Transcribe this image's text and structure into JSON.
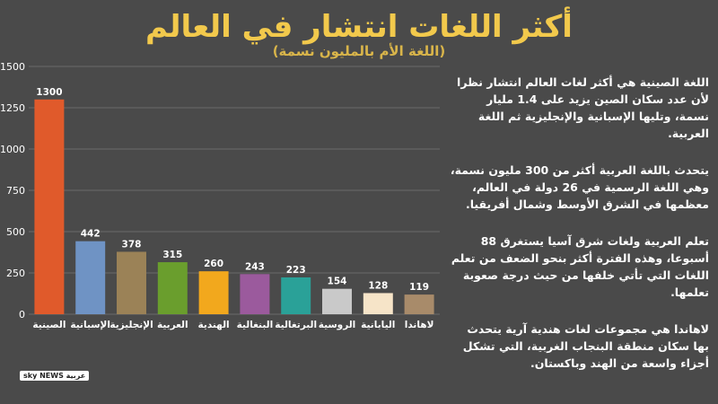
{
  "header": {
    "title": "أكثر اللغات انتشار في العالم",
    "subtitle": "(اللغة الأم بالمليون نسمة)"
  },
  "chart_data": {
    "type": "bar",
    "categories": [
      "الصينية",
      "الإسبانية",
      "الإنجليزية",
      "العربية",
      "الهندية",
      "البنغالية",
      "البرتغالية",
      "الروسية",
      "اليابانية",
      "لاهاندا"
    ],
    "values": [
      1300,
      442,
      378,
      315,
      260,
      243,
      223,
      154,
      128,
      119
    ],
    "colors": [
      "#e05a2b",
      "#6f93c4",
      "#9b8257",
      "#6a9e2d",
      "#f2a81d",
      "#9b5a9d",
      "#2aa198",
      "#c9c9c9",
      "#f6e4c8",
      "#a88b6a"
    ],
    "yticks": [
      0,
      250,
      500,
      750,
      1000,
      1250,
      1500
    ],
    "ylim": [
      0,
      1500
    ],
    "grid": true,
    "xlabel": "",
    "ylabel": ""
  },
  "notes": [
    "اللغة الصينية هي أكثر لغات العالم انتشار نظرا لأن عدد سكان الصين يزيد على 1.4 مليار نسمة، وتليها الإسبانية والإنجليزية ثم اللغة العربية.",
    "يتحدث باللغة العربية أكثر من 300 مليون نسمة، وهي اللغة الرسمية في 26 دولة في العالم، معظمها في الشرق الأوسط وشمال أفريقيا.",
    "تعلم العربية ولغات شرق آسيا يستغرق 88 أسبوعا، وهذه الفترة أكثر بنحو الضعف من تعلم اللغات التي تأتي خلفها من حيث درجة صعوبة تعلمها.",
    "لاهاندا هي مجموعات لغات هندية آرية يتحدث بها سكان منطقة البنجاب الغربية، التي تشكل أجزاء واسعة من الهند وباكستان."
  ],
  "logo": {
    "text": "sky NEWS عربية"
  }
}
